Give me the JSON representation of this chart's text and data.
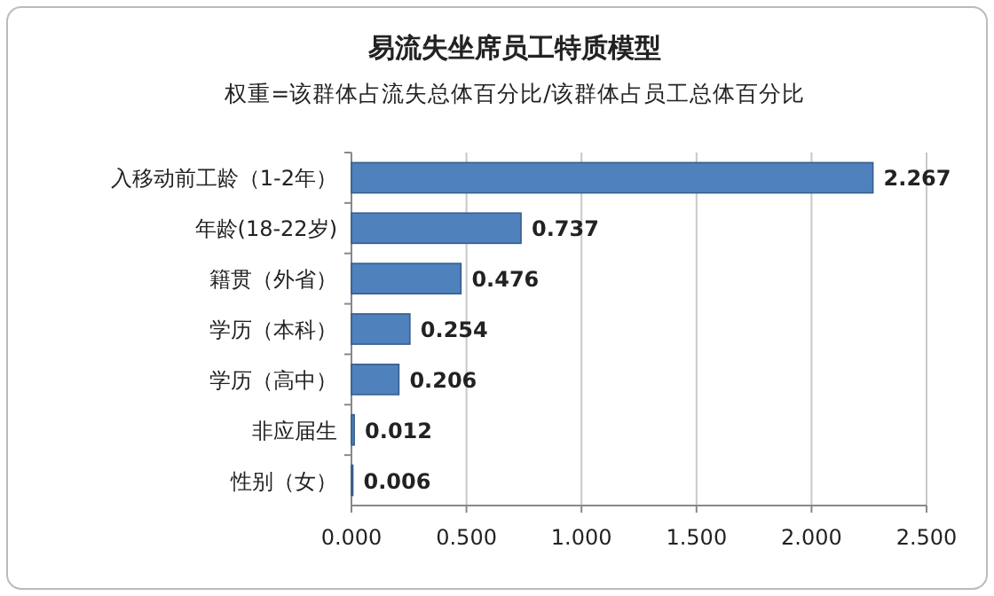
{
  "chart_data": {
    "type": "bar",
    "orientation": "horizontal",
    "title": "易流失坐席员工特质模型",
    "subtitle": "权重=该群体占流失总体百分比/该群体占员工总体百分比",
    "categories": [
      "入移动前工龄（1-2年）",
      "年龄(18-22岁)",
      "籍贯（外省）",
      "学历（本科）",
      "学历（高中）",
      "非应届生",
      "性别（女）"
    ],
    "values": [
      2.267,
      0.737,
      0.476,
      0.254,
      0.206,
      0.012,
      0.006
    ],
    "color": "#4f81bd",
    "xlim": [
      0,
      2.5
    ],
    "xticks": [
      {
        "value": 0,
        "label": "0.000"
      },
      {
        "value": 0.5,
        "label": "0.500"
      },
      {
        "value": 1,
        "label": "1.000"
      },
      {
        "value": 1.5,
        "label": "1.500"
      },
      {
        "value": 2,
        "label": "2.000"
      },
      {
        "value": 2.5,
        "label": "2.500"
      }
    ],
    "grid": "x",
    "data_labels": true
  }
}
